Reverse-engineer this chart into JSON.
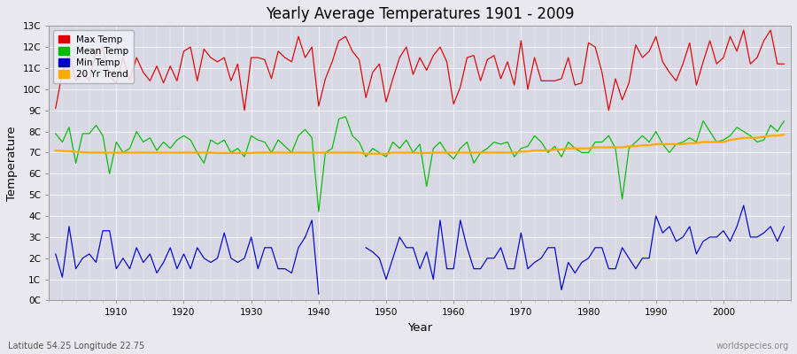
{
  "title": "Yearly Average Temperatures 1901 - 2009",
  "xlabel": "Year",
  "ylabel": "Temperature",
  "subtitle_left": "Latitude 54.25 Longitude 22.75",
  "subtitle_right": "worldspecies.org",
  "years": [
    1901,
    1902,
    1903,
    1904,
    1905,
    1906,
    1907,
    1908,
    1909,
    1910,
    1911,
    1912,
    1913,
    1914,
    1915,
    1916,
    1917,
    1918,
    1919,
    1920,
    1921,
    1922,
    1923,
    1924,
    1925,
    1926,
    1927,
    1928,
    1929,
    1930,
    1931,
    1932,
    1933,
    1934,
    1935,
    1936,
    1937,
    1938,
    1939,
    1940,
    1941,
    1942,
    1943,
    1944,
    1945,
    1946,
    1947,
    1948,
    1949,
    1950,
    1951,
    1952,
    1953,
    1954,
    1955,
    1956,
    1957,
    1958,
    1959,
    1960,
    1961,
    1962,
    1963,
    1964,
    1965,
    1966,
    1967,
    1968,
    1969,
    1970,
    1971,
    1972,
    1973,
    1974,
    1975,
    1976,
    1977,
    1978,
    1979,
    1980,
    1981,
    1982,
    1983,
    1984,
    1985,
    1986,
    1987,
    1988,
    1989,
    1990,
    1991,
    1992,
    1993,
    1994,
    1995,
    1996,
    1997,
    1998,
    1999,
    2000,
    2001,
    2002,
    2003,
    2004,
    2005,
    2006,
    2007,
    2008,
    2009
  ],
  "max_temp": [
    9.1,
    10.8,
    11.7,
    10.4,
    10.8,
    10.4,
    11.8,
    12.0,
    10.6,
    10.3,
    11.5,
    10.4,
    11.5,
    10.8,
    10.4,
    11.1,
    10.3,
    11.1,
    10.4,
    11.8,
    12.0,
    10.4,
    11.9,
    11.5,
    11.3,
    11.5,
    10.4,
    11.2,
    9.0,
    11.5,
    11.5,
    11.4,
    10.5,
    11.8,
    11.5,
    11.3,
    12.5,
    11.5,
    12.0,
    9.2,
    10.5,
    11.3,
    12.3,
    12.5,
    11.8,
    11.4,
    9.6,
    10.8,
    11.2,
    9.4,
    10.5,
    11.5,
    12.0,
    10.7,
    11.5,
    10.9,
    11.6,
    12.0,
    11.3,
    9.3,
    10.1,
    11.5,
    11.6,
    10.4,
    11.4,
    11.6,
    10.5,
    11.3,
    10.2,
    12.3,
    10.0,
    11.5,
    10.4,
    10.4,
    10.4,
    10.5,
    11.5,
    10.2,
    10.3,
    12.2,
    12.0,
    10.8,
    9.0,
    10.5,
    9.5,
    10.3,
    12.1,
    11.5,
    11.8,
    12.5,
    11.3,
    10.8,
    10.4,
    11.2,
    12.2,
    10.2,
    11.3,
    12.3,
    11.2,
    11.5,
    12.5,
    11.8,
    12.8,
    11.2,
    11.5,
    12.3,
    12.8,
    11.2,
    11.2
  ],
  "mean_temp": [
    7.9,
    7.5,
    8.2,
    6.5,
    7.9,
    7.9,
    8.3,
    7.8,
    6.0,
    7.5,
    7.0,
    7.2,
    8.0,
    7.5,
    7.7,
    7.1,
    7.5,
    7.2,
    7.6,
    7.8,
    7.6,
    7.0,
    6.5,
    7.6,
    7.4,
    7.6,
    7.0,
    7.2,
    6.8,
    7.8,
    7.6,
    7.5,
    7.0,
    7.6,
    7.3,
    7.0,
    7.8,
    8.1,
    7.7,
    4.2,
    7.0,
    7.2,
    8.6,
    8.7,
    7.8,
    7.5,
    6.8,
    7.2,
    7.0,
    6.8,
    7.5,
    7.2,
    7.6,
    7.0,
    7.4,
    5.4,
    7.2,
    7.5,
    7.0,
    6.7,
    7.2,
    7.5,
    6.5,
    7.0,
    7.2,
    7.5,
    7.4,
    7.5,
    6.8,
    7.2,
    7.3,
    7.8,
    7.5,
    7.0,
    7.3,
    6.8,
    7.5,
    7.2,
    7.0,
    7.0,
    7.5,
    7.5,
    7.8,
    7.2,
    4.8,
    7.2,
    7.5,
    7.8,
    7.5,
    8.0,
    7.4,
    7.0,
    7.4,
    7.5,
    7.7,
    7.5,
    8.5,
    8.0,
    7.5,
    7.6,
    7.8,
    8.2,
    8.0,
    7.8,
    7.5,
    7.6,
    8.3,
    8.0,
    8.5
  ],
  "min_temp": [
    2.2,
    1.1,
    3.5,
    1.5,
    2.0,
    2.2,
    1.8,
    3.3,
    3.3,
    1.5,
    2.0,
    1.5,
    2.5,
    1.8,
    2.2,
    1.3,
    1.8,
    2.5,
    1.5,
    2.2,
    1.5,
    2.5,
    2.0,
    1.8,
    2.0,
    3.2,
    2.0,
    1.8,
    2.0,
    3.0,
    1.5,
    2.5,
    2.5,
    1.5,
    1.5,
    1.3,
    2.5,
    3.0,
    3.8,
    0.3,
    null,
    null,
    null,
    null,
    null,
    null,
    2.5,
    2.3,
    2.0,
    1.0,
    2.0,
    3.0,
    2.5,
    2.5,
    1.5,
    2.3,
    1.0,
    3.8,
    1.5,
    1.5,
    3.8,
    2.5,
    1.5,
    1.5,
    2.0,
    2.0,
    2.5,
    1.5,
    1.5,
    3.2,
    1.5,
    1.8,
    2.0,
    2.5,
    2.5,
    0.5,
    1.8,
    1.3,
    1.8,
    2.0,
    2.5,
    2.5,
    1.5,
    1.5,
    2.5,
    2.0,
    1.5,
    2.0,
    2.0,
    4.0,
    3.2,
    3.5,
    2.8,
    3.0,
    3.5,
    2.2,
    2.8,
    3.0,
    3.0,
    3.3,
    2.8,
    3.5,
    4.5,
    3.0,
    3.0,
    3.2,
    3.5,
    2.8,
    3.5
  ],
  "trend": [
    7.1,
    7.08,
    7.06,
    7.04,
    7.02,
    7.0,
    7.0,
    7.0,
    7.0,
    7.0,
    7.0,
    7.0,
    7.0,
    7.0,
    7.0,
    7.0,
    7.0,
    7.0,
    7.0,
    7.0,
    7.0,
    7.0,
    7.0,
    7.0,
    6.98,
    6.98,
    6.98,
    6.98,
    6.98,
    6.98,
    7.0,
    7.0,
    7.0,
    7.0,
    7.0,
    7.0,
    7.0,
    7.0,
    7.0,
    7.0,
    7.0,
    7.0,
    7.0,
    7.0,
    7.0,
    7.0,
    6.95,
    6.95,
    6.95,
    6.95,
    7.0,
    7.0,
    7.0,
    7.0,
    6.98,
    6.98,
    7.0,
    7.0,
    7.0,
    7.0,
    7.0,
    7.0,
    7.0,
    7.0,
    7.0,
    7.0,
    7.0,
    7.0,
    7.0,
    7.05,
    7.05,
    7.1,
    7.1,
    7.1,
    7.15,
    7.15,
    7.2,
    7.2,
    7.2,
    7.2,
    7.25,
    7.25,
    7.25,
    7.25,
    7.25,
    7.3,
    7.3,
    7.35,
    7.35,
    7.4,
    7.4,
    7.4,
    7.4,
    7.4,
    7.45,
    7.45,
    7.5,
    7.5,
    7.5,
    7.5,
    7.6,
    7.65,
    7.7,
    7.7,
    7.7,
    7.75,
    7.8,
    7.8,
    7.85
  ],
  "max_color": "#dd0000",
  "mean_color": "#00bb00",
  "min_color": "#0000cc",
  "trend_color": "#ffaa00",
  "bg_color": "#e8e8ee",
  "plot_bg_color": "#d8d8e4",
  "grid_color": "#ffffff",
  "ylim": [
    0,
    13
  ],
  "yticks": [
    0,
    1,
    2,
    3,
    4,
    5,
    6,
    7,
    8,
    9,
    10,
    11,
    12,
    13
  ],
  "yticklabels": [
    "0C",
    "1C",
    "2C",
    "3C",
    "4C",
    "5C",
    "6C",
    "7C",
    "8C",
    "9C",
    "10C",
    "11C",
    "12C",
    "13C"
  ],
  "xlim": [
    1900,
    2010
  ],
  "xticks": [
    1910,
    1920,
    1930,
    1940,
    1950,
    1960,
    1970,
    1980,
    1990,
    2000
  ],
  "legend_labels": [
    "Max Temp",
    "Mean Temp",
    "Min Temp",
    "20 Yr Trend"
  ],
  "legend_colors": [
    "#dd0000",
    "#00bb00",
    "#0000cc",
    "#ffaa00"
  ]
}
